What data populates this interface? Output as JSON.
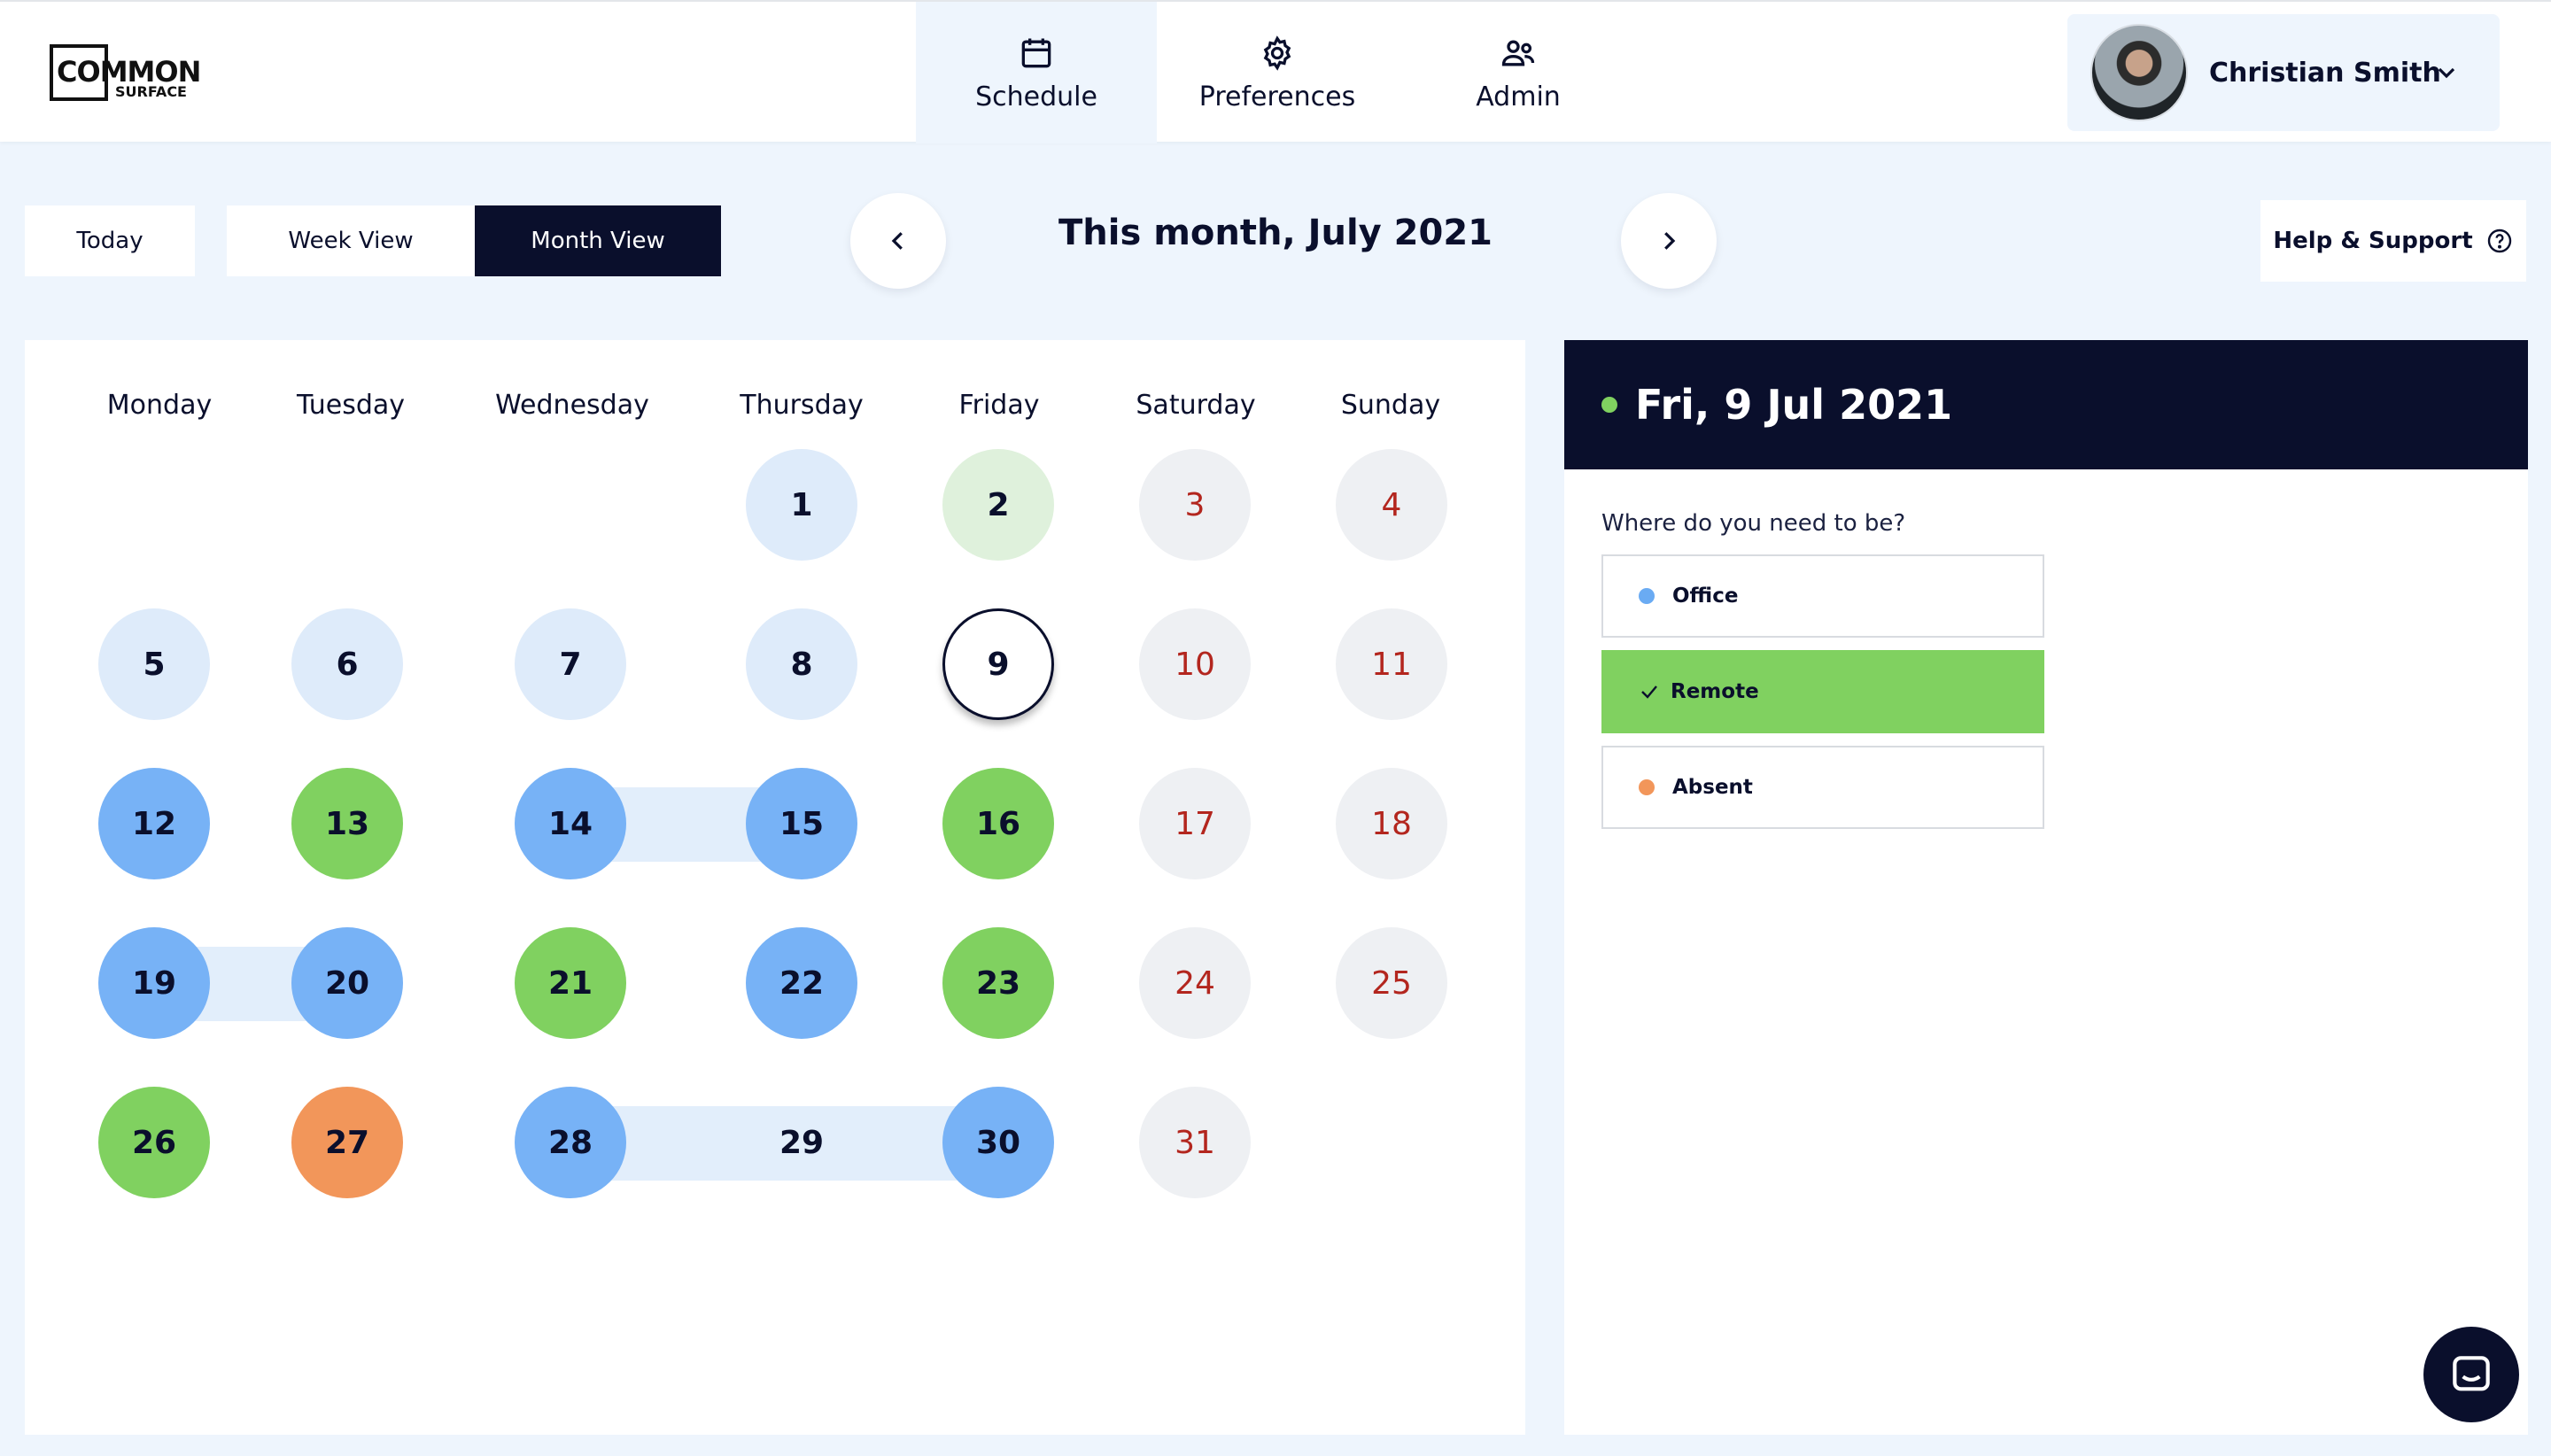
{
  "logo": {
    "word1": "COMMON",
    "word2": "SURFACE"
  },
  "nav": {
    "tabs": [
      {
        "label": "Schedule",
        "icon": "calendar-icon",
        "active": true
      },
      {
        "label": "Preferences",
        "icon": "gear-icon",
        "active": false
      },
      {
        "label": "Admin",
        "icon": "users-icon",
        "active": false
      }
    ]
  },
  "user": {
    "name": "Christian Smith",
    "icon": "chevron-down-icon"
  },
  "toolbar": {
    "today": "Today",
    "week_view": "Week View",
    "month_view": "Month View",
    "title": "This month, July 2021",
    "help": "Help & Support"
  },
  "calendar": {
    "weekdays": [
      "Monday",
      "Tuesday",
      "Wednesday",
      "Thursday",
      "Friday",
      "Saturday",
      "Sunday"
    ],
    "days": [
      {
        "day": "1",
        "status": "light"
      },
      {
        "day": "2",
        "status": "lightgreen"
      },
      {
        "day": "3",
        "status": "weekend"
      },
      {
        "day": "4",
        "status": "weekend"
      },
      {
        "day": "5",
        "status": "light"
      },
      {
        "day": "6",
        "status": "light"
      },
      {
        "day": "7",
        "status": "light"
      },
      {
        "day": "8",
        "status": "light"
      },
      {
        "day": "9",
        "status": "selected"
      },
      {
        "day": "10",
        "status": "weekend"
      },
      {
        "day": "11",
        "status": "weekend"
      },
      {
        "day": "12",
        "status": "blue"
      },
      {
        "day": "13",
        "status": "green"
      },
      {
        "day": "14",
        "status": "blue"
      },
      {
        "day": "15",
        "status": "blue"
      },
      {
        "day": "16",
        "status": "green"
      },
      {
        "day": "17",
        "status": "weekend"
      },
      {
        "day": "18",
        "status": "weekend"
      },
      {
        "day": "19",
        "status": "blue"
      },
      {
        "day": "20",
        "status": "blue"
      },
      {
        "day": "21",
        "status": "green"
      },
      {
        "day": "22",
        "status": "blue"
      },
      {
        "day": "23",
        "status": "green"
      },
      {
        "day": "24",
        "status": "weekend"
      },
      {
        "day": "25",
        "status": "weekend"
      },
      {
        "day": "26",
        "status": "green"
      },
      {
        "day": "27",
        "status": "orange"
      },
      {
        "day": "28",
        "status": "blue"
      },
      {
        "day": "29",
        "status": "plain"
      },
      {
        "day": "30",
        "status": "blue"
      },
      {
        "day": "31",
        "status": "weekend"
      }
    ],
    "colors": {
      "office": "#77b2f6",
      "remote": "#80d160",
      "absent": "#f2965a",
      "weekend_text": "#b3261e"
    }
  },
  "detail": {
    "date": "Fri, 9 Jul 2021",
    "question": "Where do you need to be?",
    "options": [
      {
        "label": "Office",
        "color": "#6aabf3",
        "selected": false
      },
      {
        "label": "Remote",
        "color": "#80d160",
        "selected": true
      },
      {
        "label": "Absent",
        "color": "#f2965a",
        "selected": false
      }
    ]
  },
  "chat": {
    "icon": "chat-icon"
  }
}
